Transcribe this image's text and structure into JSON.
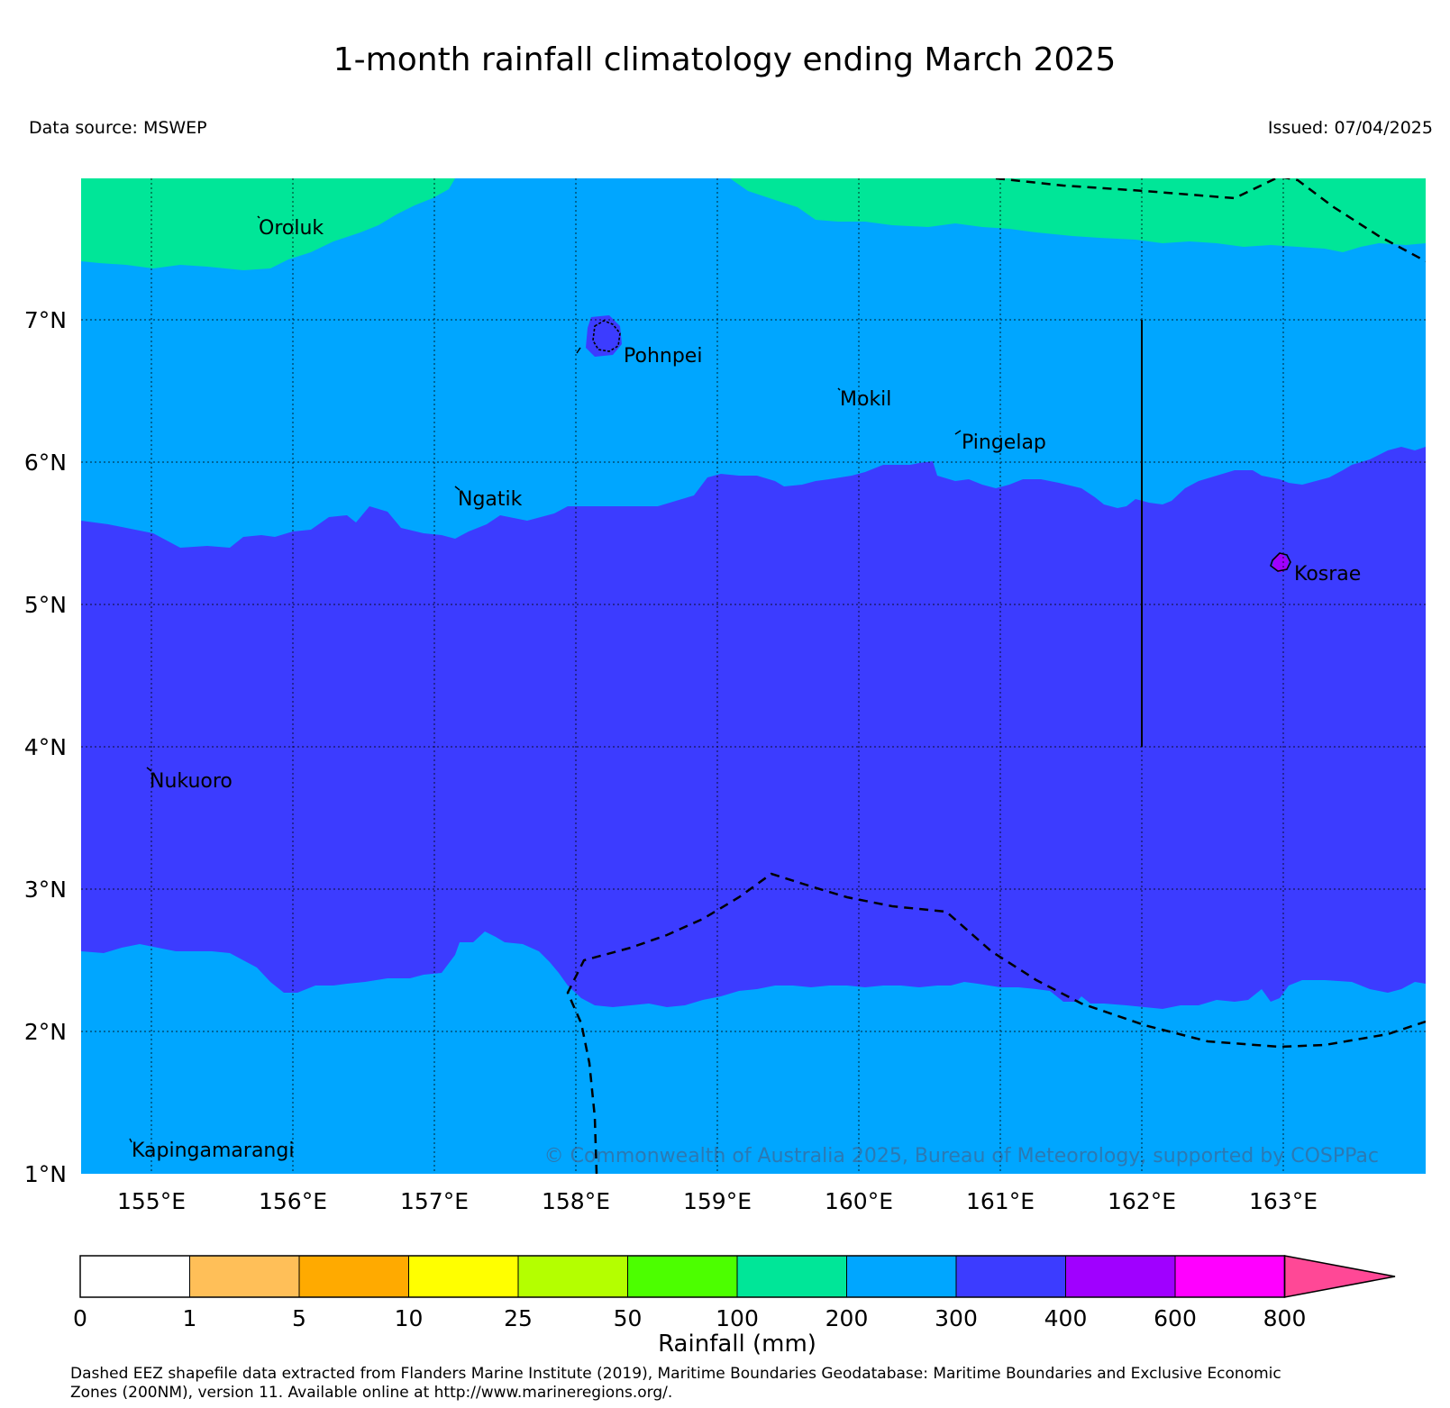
{
  "title": "1-month rainfall climatology ending March 2025",
  "source": "Data source: MSWEP",
  "issued": "Issued: 07/04/2025",
  "colors": {
    "band_green": "#00e698",
    "band_light_blue": "#00a6ff",
    "band_dark_blue": "#3c3cff",
    "band_purple": "#a000ff"
  },
  "x_ticks": [
    "155°E",
    "156°E",
    "157°E",
    "158°E",
    "159°E",
    "160°E",
    "161°E",
    "162°E",
    "163°E"
  ],
  "y_ticks": [
    "1°N",
    "2°N",
    "3°N",
    "4°N",
    "5°N",
    "6°N",
    "7°N"
  ],
  "places": [
    "Oroluk",
    "Pohnpei",
    "Mokil",
    "Pingelap",
    "Ngatik",
    "Kosrae",
    "Nukuoro",
    "Kapingamarangi"
  ],
  "copyright": "© Commonwealth of Australia 2025, Bureau of Meteorology, supported by COSPPac",
  "legend": {
    "label": "Rainfall (mm)",
    "ticks": [
      "0",
      "1",
      "5",
      "10",
      "25",
      "50",
      "100",
      "200",
      "300",
      "400",
      "600",
      "800"
    ],
    "colors": [
      "#ffffff",
      "#ffbf58",
      "#ffaa00",
      "#ffff00",
      "#b4ff00",
      "#4cff00",
      "#00e698",
      "#00a6ff",
      "#3c3cff",
      "#a000ff",
      "#ff00ff"
    ],
    "extend_color": "#ff4896"
  },
  "footnote_line1": "Dashed EEZ shapefile data extracted from Flanders Marine Institute (2019), Maritime Boundaries Geodatabase: Maritime Boundaries and Exclusive Economic",
  "footnote_line2": "Zones (200NM), version 11. Available online at http://www.marineregions.org/."
}
